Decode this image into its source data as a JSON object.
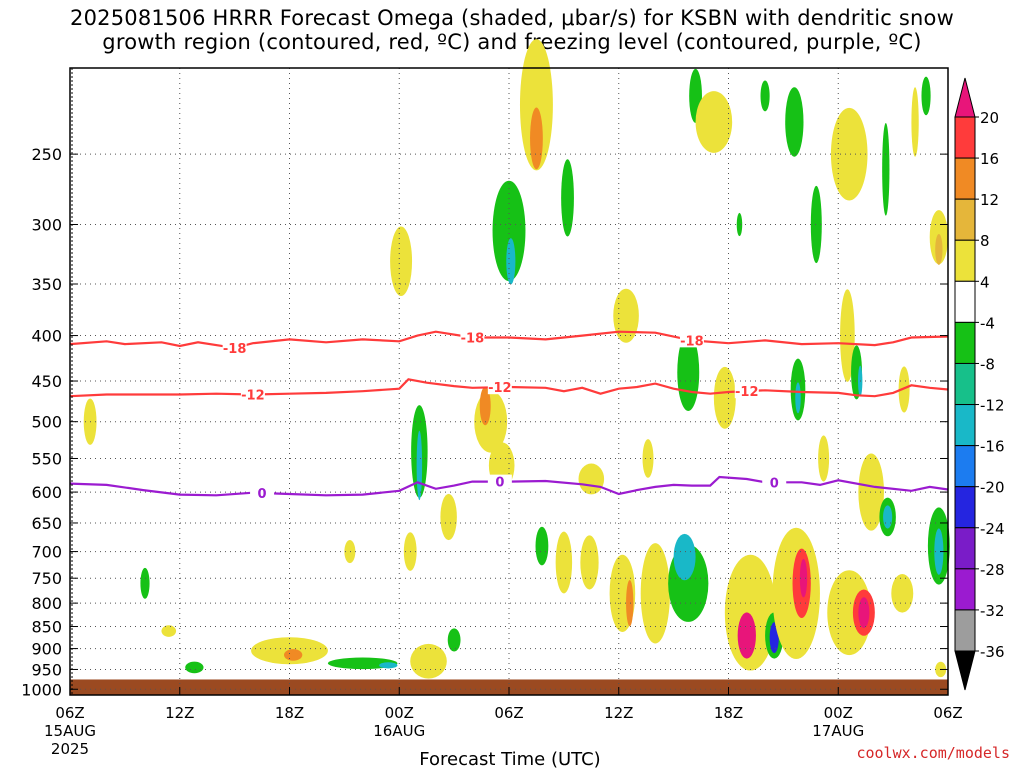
{
  "title": {
    "line1": "2025081506 HRRR Forecast Omega (shaded, μbar/s) for KSBN with dendritic snow",
    "line2": "growth region (contoured, red, ºC) and freezing level (contoured, purple, ºC)"
  },
  "credit": "coolwx.com/models",
  "chart_data": {
    "type": "time-height cross section",
    "xlabel": "Forecast Time (UTC)",
    "ylabel": "",
    "x_ticks": [
      {
        "hour": 0,
        "label": "06Z",
        "sub": "15AUG",
        "sub2": "2025"
      },
      {
        "hour": 6,
        "label": "12Z"
      },
      {
        "hour": 12,
        "label": "18Z"
      },
      {
        "hour": 18,
        "label": "00Z",
        "sub": "16AUG"
      },
      {
        "hour": 24,
        "label": "06Z"
      },
      {
        "hour": 30,
        "label": "12Z"
      },
      {
        "hour": 36,
        "label": "18Z"
      },
      {
        "hour": 42,
        "label": "00Z",
        "sub": "17AUG"
      },
      {
        "hour": 48,
        "label": "06Z"
      }
    ],
    "xlim_hours": [
      0,
      48
    ],
    "y_ticks_hpa": [
      250,
      300,
      350,
      400,
      450,
      500,
      550,
      600,
      650,
      700,
      750,
      800,
      850,
      900,
      950,
      1000
    ],
    "ylim_hpa": [
      200,
      1015
    ],
    "y_scale": "log-pressure",
    "ground_hpa": 975,
    "grid": true,
    "colorbar": {
      "labels": [
        "20",
        "16",
        "12",
        "8",
        "4",
        "-4",
        "-8",
        "-12",
        "-16",
        "-20",
        "-24",
        "-28",
        "-32",
        "-36"
      ],
      "colors": [
        "#e8157a",
        "#ff3b3b",
        "#f08a24",
        "#e5b63a",
        "#ece23a",
        "#ffffff",
        "#16c116",
        "#17c08a",
        "#19b8c8",
        "#1c7cf0",
        "#2525e0",
        "#7a1cc8",
        "#9b1bd0",
        "#9d9d9d",
        "#000000"
      ]
    },
    "contours": [
      {
        "label": "-18",
        "color": "#ff3b3b",
        "label_hours": [
          9,
          22,
          34
        ],
        "points": [
          [
            0,
            409
          ],
          [
            2,
            406
          ],
          [
            3,
            409
          ],
          [
            5,
            407
          ],
          [
            6,
            411
          ],
          [
            7,
            407
          ],
          [
            9,
            413
          ],
          [
            10,
            408
          ],
          [
            12,
            404
          ],
          [
            14,
            407
          ],
          [
            16,
            404
          ],
          [
            18,
            406
          ],
          [
            19,
            400
          ],
          [
            20,
            396
          ],
          [
            22,
            402
          ],
          [
            24,
            402
          ],
          [
            26,
            404
          ],
          [
            28,
            400
          ],
          [
            30,
            396
          ],
          [
            32,
            397
          ],
          [
            34,
            405
          ],
          [
            36,
            408
          ],
          [
            38,
            405
          ],
          [
            40,
            409
          ],
          [
            42,
            408
          ],
          [
            44,
            410
          ],
          [
            45,
            407
          ],
          [
            46,
            402
          ],
          [
            48,
            401
          ]
        ]
      },
      {
        "label": "-12",
        "color": "#ff3b3b",
        "label_hours": [
          10,
          23.5,
          37
        ],
        "points": [
          [
            0,
            468
          ],
          [
            2,
            466
          ],
          [
            4,
            466
          ],
          [
            6,
            466
          ],
          [
            8,
            465
          ],
          [
            10,
            466
          ],
          [
            12,
            465
          ],
          [
            14,
            464
          ],
          [
            16,
            462
          ],
          [
            18,
            459
          ],
          [
            18.5,
            448
          ],
          [
            19.5,
            452
          ],
          [
            21,
            456
          ],
          [
            22,
            458
          ],
          [
            24,
            457
          ],
          [
            26,
            458
          ],
          [
            27,
            462
          ],
          [
            28,
            458
          ],
          [
            29,
            465
          ],
          [
            30,
            459
          ],
          [
            31,
            457
          ],
          [
            32,
            453
          ],
          [
            33,
            459
          ],
          [
            34,
            463
          ],
          [
            35,
            465
          ],
          [
            36,
            463
          ],
          [
            38,
            461
          ],
          [
            40,
            463
          ],
          [
            42,
            464
          ],
          [
            43,
            467
          ],
          [
            44,
            468
          ],
          [
            45,
            464
          ],
          [
            46,
            455
          ],
          [
            47,
            458
          ],
          [
            48,
            460
          ]
        ]
      },
      {
        "label": "0",
        "color": "#9b1bd0",
        "label_hours": [
          10.5,
          23.5,
          38.5
        ],
        "points": [
          [
            0,
            587
          ],
          [
            2,
            589
          ],
          [
            4,
            597
          ],
          [
            6,
            604
          ],
          [
            8,
            605
          ],
          [
            10,
            601
          ],
          [
            12,
            603
          ],
          [
            14,
            605
          ],
          [
            16,
            604
          ],
          [
            18,
            598
          ],
          [
            19,
            585
          ],
          [
            20,
            595
          ],
          [
            21,
            590
          ],
          [
            22,
            584
          ],
          [
            24,
            584
          ],
          [
            26,
            583
          ],
          [
            28,
            588
          ],
          [
            29,
            592
          ],
          [
            30,
            603
          ],
          [
            31,
            597
          ],
          [
            32,
            592
          ],
          [
            33,
            589
          ],
          [
            34,
            590
          ],
          [
            35,
            590
          ],
          [
            35.5,
            577
          ],
          [
            37,
            580
          ],
          [
            38,
            585
          ],
          [
            40,
            585
          ],
          [
            41,
            589
          ],
          [
            42,
            582
          ],
          [
            44,
            592
          ],
          [
            46,
            598
          ],
          [
            47,
            592
          ],
          [
            48,
            596
          ]
        ]
      }
    ],
    "omega_cells": [
      {
        "t": 1.1,
        "p": 500,
        "dt": 0.35,
        "lp": 0.06,
        "value": 4
      },
      {
        "t": 4.1,
        "p": 760,
        "dt": 0.25,
        "lp": 0.04,
        "value": -4
      },
      {
        "t": 5.4,
        "p": 860,
        "dt": 0.4,
        "lp": 0.015,
        "value": 4
      },
      {
        "t": 6.8,
        "p": 945,
        "dt": 0.5,
        "lp": 0.015,
        "value": -4
      },
      {
        "t": 12.0,
        "p": 905,
        "dt": 2.1,
        "lp": 0.035,
        "value": 4
      },
      {
        "t": 12.2,
        "p": 915,
        "dt": 0.5,
        "lp": 0.015,
        "value": 12
      },
      {
        "t": 15.3,
        "p": 700,
        "dt": 0.3,
        "lp": 0.03,
        "value": 4
      },
      {
        "t": 16.0,
        "p": 935,
        "dt": 1.9,
        "lp": 0.015,
        "value": -4
      },
      {
        "t": 17.4,
        "p": 940,
        "dt": 0.5,
        "lp": 0.008,
        "value": -12
      },
      {
        "t": 18.1,
        "p": 330,
        "dt": 0.6,
        "lp": 0.09,
        "value": 4
      },
      {
        "t": 18.6,
        "p": 700,
        "dt": 0.35,
        "lp": 0.05,
        "value": 4
      },
      {
        "t": 19.6,
        "p": 930,
        "dt": 1.0,
        "lp": 0.045,
        "value": 4
      },
      {
        "t": 19.1,
        "p": 540,
        "dt": 0.45,
        "lp": 0.12,
        "value": -4
      },
      {
        "t": 19.1,
        "p": 560,
        "dt": 0.15,
        "lp": 0.09,
        "value": -12
      },
      {
        "t": 20.7,
        "p": 640,
        "dt": 0.45,
        "lp": 0.06,
        "value": 4
      },
      {
        "t": 21.0,
        "p": 880,
        "dt": 0.35,
        "lp": 0.03,
        "value": -4
      },
      {
        "t": 23.0,
        "p": 500,
        "dt": 0.9,
        "lp": 0.08,
        "value": 4
      },
      {
        "t": 22.7,
        "p": 480,
        "dt": 0.3,
        "lp": 0.05,
        "value": 12
      },
      {
        "t": 23.6,
        "p": 560,
        "dt": 0.7,
        "lp": 0.06,
        "value": 4
      },
      {
        "t": 24.0,
        "p": 305,
        "dt": 0.9,
        "lp": 0.13,
        "value": -4
      },
      {
        "t": 24.1,
        "p": 330,
        "dt": 0.25,
        "lp": 0.06,
        "value": -12
      },
      {
        "t": 25.5,
        "p": 220,
        "dt": 0.9,
        "lp": 0.17,
        "value": 4
      },
      {
        "t": 25.5,
        "p": 240,
        "dt": 0.35,
        "lp": 0.08,
        "value": 12
      },
      {
        "t": 27.2,
        "p": 280,
        "dt": 0.35,
        "lp": 0.1,
        "value": -4
      },
      {
        "t": 25.8,
        "p": 690,
        "dt": 0.35,
        "lp": 0.05,
        "value": -4
      },
      {
        "t": 27.0,
        "p": 720,
        "dt": 0.45,
        "lp": 0.08,
        "value": 4
      },
      {
        "t": 28.4,
        "p": 720,
        "dt": 0.5,
        "lp": 0.07,
        "value": 4
      },
      {
        "t": 28.5,
        "p": 580,
        "dt": 0.7,
        "lp": 0.04,
        "value": 4
      },
      {
        "t": 30.2,
        "p": 780,
        "dt": 0.7,
        "lp": 0.1,
        "value": 4
      },
      {
        "t": 30.6,
        "p": 800,
        "dt": 0.2,
        "lp": 0.06,
        "value": 12
      },
      {
        "t": 30.4,
        "p": 380,
        "dt": 0.7,
        "lp": 0.07,
        "value": 4
      },
      {
        "t": 32.0,
        "p": 780,
        "dt": 0.8,
        "lp": 0.13,
        "value": 4
      },
      {
        "t": 31.6,
        "p": 550,
        "dt": 0.3,
        "lp": 0.05,
        "value": 4
      },
      {
        "t": 33.8,
        "p": 440,
        "dt": 0.6,
        "lp": 0.1,
        "value": -4
      },
      {
        "t": 33.8,
        "p": 760,
        "dt": 1.1,
        "lp": 0.1,
        "value": -4
      },
      {
        "t": 33.6,
        "p": 710,
        "dt": 0.6,
        "lp": 0.06,
        "value": -12
      },
      {
        "t": 34.2,
        "p": 215,
        "dt": 0.35,
        "lp": 0.07,
        "value": -4
      },
      {
        "t": 35.2,
        "p": 230,
        "dt": 1.0,
        "lp": 0.08,
        "value": 4
      },
      {
        "t": 35.8,
        "p": 470,
        "dt": 0.6,
        "lp": 0.08,
        "value": 4
      },
      {
        "t": 36.6,
        "p": 300,
        "dt": 0.15,
        "lp": 0.03,
        "value": -4
      },
      {
        "t": 37.2,
        "p": 820,
        "dt": 1.4,
        "lp": 0.15,
        "value": 4
      },
      {
        "t": 37.0,
        "p": 870,
        "dt": 0.5,
        "lp": 0.06,
        "value": 20
      },
      {
        "t": 38.5,
        "p": 870,
        "dt": 0.5,
        "lp": 0.06,
        "value": -4
      },
      {
        "t": 38.5,
        "p": 875,
        "dt": 0.25,
        "lp": 0.04,
        "value": -20
      },
      {
        "t": 38.0,
        "p": 215,
        "dt": 0.25,
        "lp": 0.04,
        "value": -4
      },
      {
        "t": 39.6,
        "p": 230,
        "dt": 0.5,
        "lp": 0.09,
        "value": -4
      },
      {
        "t": 39.7,
        "p": 780,
        "dt": 1.3,
        "lp": 0.17,
        "value": 4
      },
      {
        "t": 40.0,
        "p": 760,
        "dt": 0.5,
        "lp": 0.09,
        "value": 16
      },
      {
        "t": 40.1,
        "p": 750,
        "dt": 0.2,
        "lp": 0.05,
        "value": 20
      },
      {
        "t": 39.8,
        "p": 460,
        "dt": 0.4,
        "lp": 0.08,
        "value": -4
      },
      {
        "t": 39.8,
        "p": 470,
        "dt": 0.15,
        "lp": 0.04,
        "value": -12
      },
      {
        "t": 40.8,
        "p": 300,
        "dt": 0.3,
        "lp": 0.1,
        "value": -4
      },
      {
        "t": 41.2,
        "p": 550,
        "dt": 0.3,
        "lp": 0.06,
        "value": 4
      },
      {
        "t": 42.6,
        "p": 250,
        "dt": 1.0,
        "lp": 0.12,
        "value": 4
      },
      {
        "t": 42.6,
        "p": 820,
        "dt": 1.2,
        "lp": 0.11,
        "value": 4
      },
      {
        "t": 43.4,
        "p": 820,
        "dt": 0.6,
        "lp": 0.06,
        "value": 16
      },
      {
        "t": 43.4,
        "p": 820,
        "dt": 0.3,
        "lp": 0.04,
        "value": 20
      },
      {
        "t": 42.5,
        "p": 400,
        "dt": 0.4,
        "lp": 0.12,
        "value": 4
      },
      {
        "t": 43.0,
        "p": 440,
        "dt": 0.3,
        "lp": 0.07,
        "value": -4
      },
      {
        "t": 43.2,
        "p": 450,
        "dt": 0.12,
        "lp": 0.04,
        "value": -12
      },
      {
        "t": 43.8,
        "p": 600,
        "dt": 0.7,
        "lp": 0.1,
        "value": 4
      },
      {
        "t": 44.7,
        "p": 640,
        "dt": 0.45,
        "lp": 0.05,
        "value": -4
      },
      {
        "t": 44.7,
        "p": 640,
        "dt": 0.25,
        "lp": 0.03,
        "value": -12
      },
      {
        "t": 44.6,
        "p": 260,
        "dt": 0.2,
        "lp": 0.12,
        "value": -4
      },
      {
        "t": 45.5,
        "p": 780,
        "dt": 0.6,
        "lp": 0.05,
        "value": 4
      },
      {
        "t": 45.6,
        "p": 460,
        "dt": 0.3,
        "lp": 0.06,
        "value": 4
      },
      {
        "t": 46.2,
        "p": 230,
        "dt": 0.2,
        "lp": 0.09,
        "value": 4
      },
      {
        "t": 47.5,
        "p": 310,
        "dt": 0.5,
        "lp": 0.07,
        "value": 4
      },
      {
        "t": 47.5,
        "p": 320,
        "dt": 0.2,
        "lp": 0.04,
        "value": 8
      },
      {
        "t": 47.5,
        "p": 690,
        "dt": 0.6,
        "lp": 0.1,
        "value": -4
      },
      {
        "t": 47.5,
        "p": 700,
        "dt": 0.25,
        "lp": 0.06,
        "value": -12
      },
      {
        "t": 46.8,
        "p": 215,
        "dt": 0.25,
        "lp": 0.05,
        "value": -4
      },
      {
        "t": 47.6,
        "p": 950,
        "dt": 0.3,
        "lp": 0.02,
        "value": 4
      }
    ]
  }
}
